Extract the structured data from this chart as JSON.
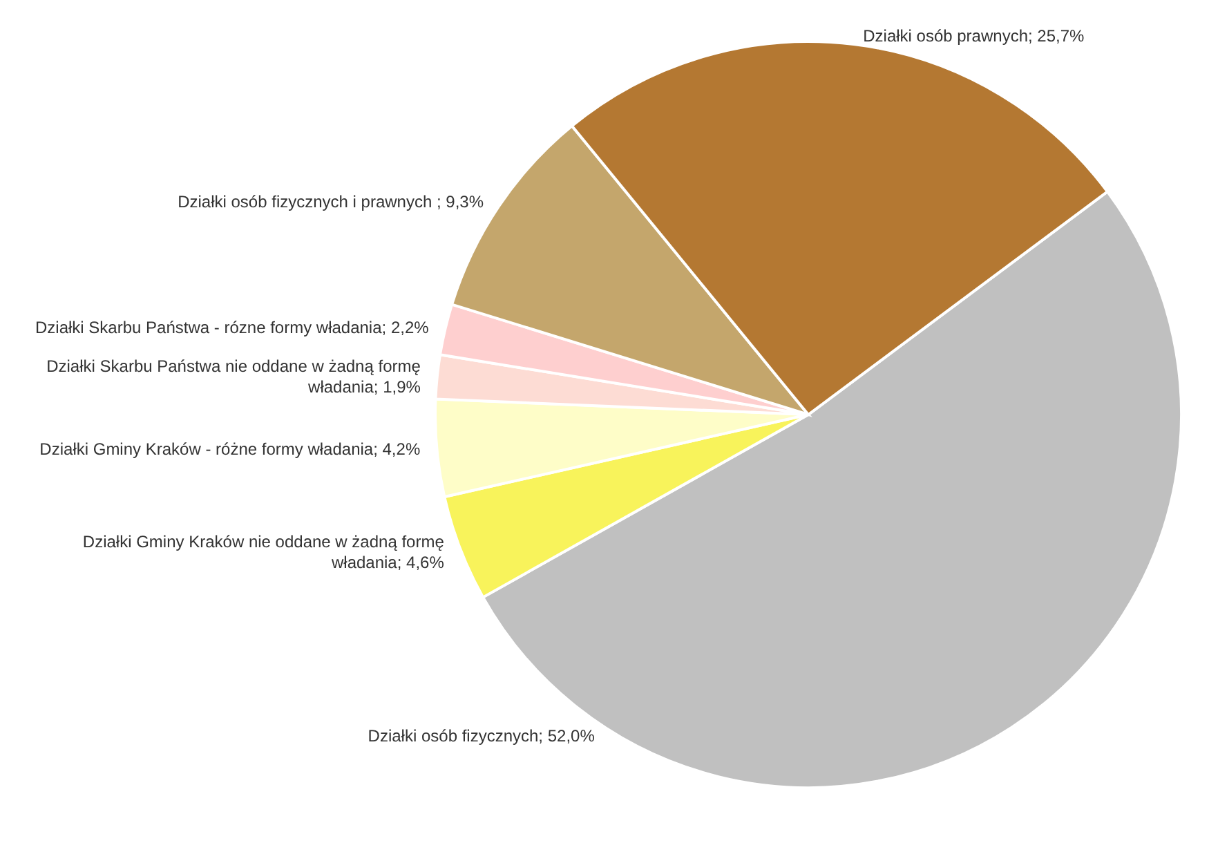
{
  "chart_data": {
    "type": "pie",
    "categories": [
      "Działki osób fizycznych",
      "Działki Gminy Kraków nie oddane w żadną formę\nwładania",
      "Działki Gminy Kraków - różne formy władania",
      "Działki Skarbu Państwa nie oddane w żadną formę\nwładania",
      "Działki Skarbu Państwa - rózne formy władania",
      "Działki osób fizycznych i prawnych ",
      "Działki osób prawnych"
    ],
    "values": [
      52.0,
      4.6,
      4.2,
      1.9,
      2.2,
      9.3,
      25.7
    ],
    "value_labels": [
      "52,0%",
      "4,6%",
      "4,2%",
      "1,9%",
      "2,2%",
      "9,3%",
      "25,7%"
    ],
    "colors": [
      "#c0c0c0",
      "#f8f35b",
      "#fefdc8",
      "#fddcd4",
      "#fecfcf",
      "#c4a66c",
      "#b47832"
    ]
  }
}
